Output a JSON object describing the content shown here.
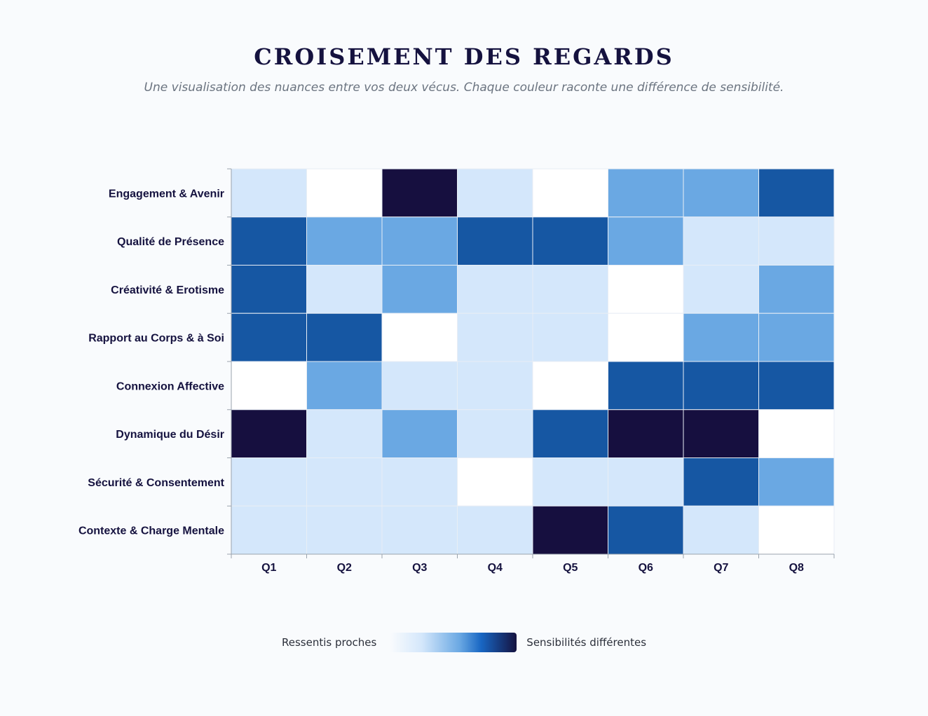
{
  "header": {
    "title": "CROISEMENT DES REGARDS",
    "subtitle": "Une visualisation des nuances entre vos deux vécus. Chaque couleur raconte une différence de sensibilité."
  },
  "legend": {
    "low_label": "Ressentis proches",
    "high_label": "Sensibilités différentes"
  },
  "colors": {
    "level_0": "#ffffff",
    "level_1": "#d4e7fb",
    "level_2": "#6aa8e3",
    "level_3": "#1657a3",
    "level_4": "#160f3f",
    "grid_line": "#e8eef5",
    "axis": "#9aa3ad"
  },
  "chart_data": {
    "type": "heatmap",
    "title": "CROISEMENT DES REGARDS",
    "x": [
      "Q1",
      "Q2",
      "Q3",
      "Q4",
      "Q5",
      "Q6",
      "Q7",
      "Q8"
    ],
    "y": [
      "Engagement & Avenir",
      "Qualité de Présence",
      "Créativité & Erotisme",
      "Rapport au Corps & à Soi",
      "Connexion Affective",
      "Dynamique du Désir",
      "Sécurité & Consentement",
      "Contexte & Charge Mentale"
    ],
    "values": [
      [
        1,
        0,
        4,
        1,
        0,
        2,
        2,
        3
      ],
      [
        3,
        2,
        2,
        3,
        3,
        2,
        1,
        1
      ],
      [
        3,
        1,
        2,
        1,
        1,
        0,
        1,
        2
      ],
      [
        3,
        3,
        0,
        1,
        1,
        0,
        2,
        2
      ],
      [
        0,
        2,
        1,
        1,
        0,
        3,
        3,
        3
      ],
      [
        4,
        1,
        2,
        1,
        3,
        4,
        4,
        0
      ],
      [
        1,
        1,
        1,
        0,
        1,
        1,
        3,
        2
      ],
      [
        1,
        1,
        1,
        1,
        4,
        3,
        1,
        0
      ]
    ],
    "scale": [
      0,
      4
    ],
    "legend_position": "bottom",
    "grid": false
  }
}
